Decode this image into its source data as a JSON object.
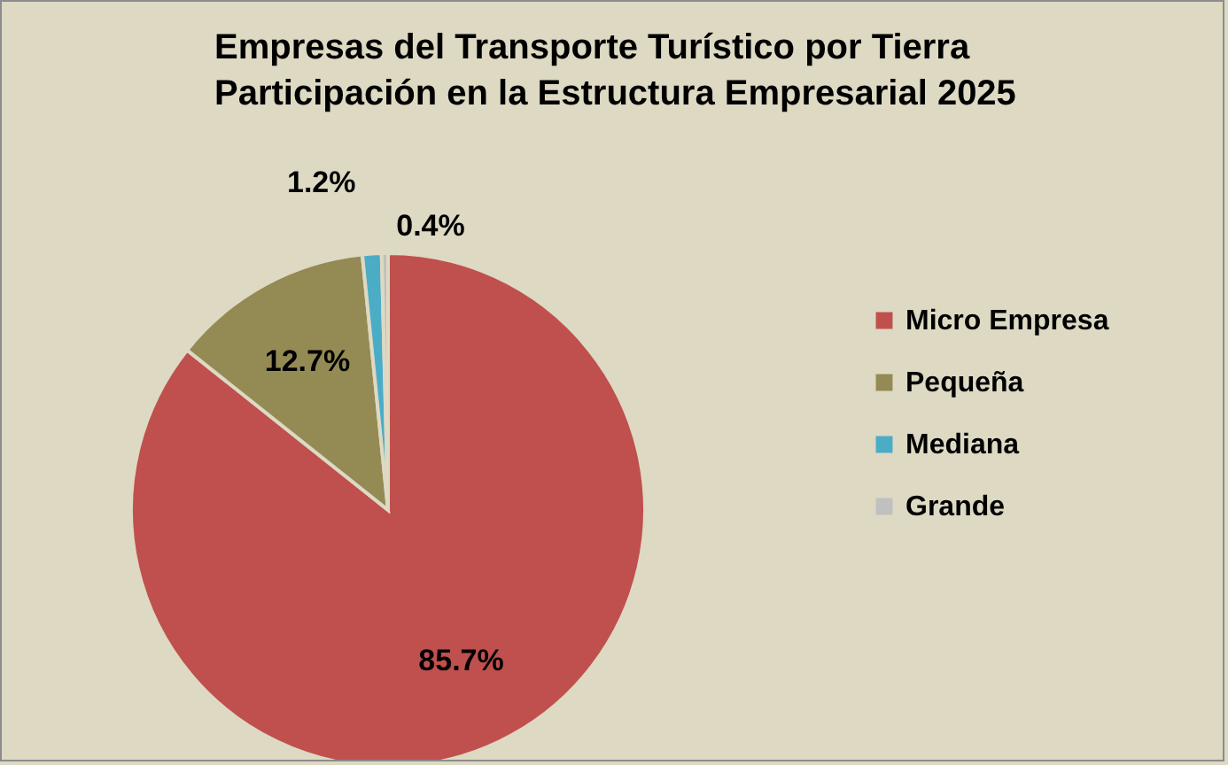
{
  "chart_data": {
    "type": "pie",
    "title": "Empresas del Transporte Turístico por Tierra\nParticipación en la Estructura Empresarial 2025",
    "categories": [
      "Micro Empresa",
      "Pequeña",
      "Mediana",
      "Grande"
    ],
    "values": [
      85.7,
      12.7,
      1.2,
      0.4
    ],
    "colors": [
      "#c0504d",
      "#948a54",
      "#4bacc6",
      "#c0c0c0"
    ],
    "value_labels": [
      "85.7%",
      "12.7%",
      "1.2%",
      "0.4%"
    ],
    "legend": "right"
  }
}
